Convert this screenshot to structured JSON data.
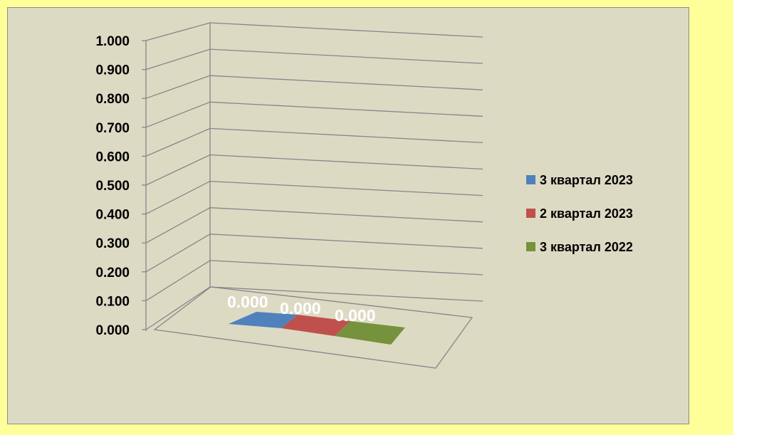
{
  "colors": {
    "background": "#FFFF99",
    "panel": "#DDDAC4",
    "series": [
      "#4F81BD",
      "#C0504D",
      "#76923C"
    ]
  },
  "chart_data": {
    "type": "bar",
    "style": "3d",
    "categories": [
      ""
    ],
    "series": [
      {
        "name": "3 квартал 2023",
        "values": [
          0.0
        ],
        "label": "0.000",
        "color": "#4F81BD"
      },
      {
        "name": "2 квартал 2023",
        "values": [
          0.0
        ],
        "label": "0.000",
        "color": "#C0504D"
      },
      {
        "name": "3 квартал 2022",
        "values": [
          0.0
        ],
        "label": "0.000",
        "color": "#76923C"
      }
    ],
    "ylim": [
      0,
      1
    ],
    "yticks": [
      "0.000",
      "0.100",
      "0.200",
      "0.300",
      "0.400",
      "0.500",
      "0.600",
      "0.700",
      "0.800",
      "0.900",
      "1.000"
    ],
    "grid": true,
    "legend": "right"
  }
}
